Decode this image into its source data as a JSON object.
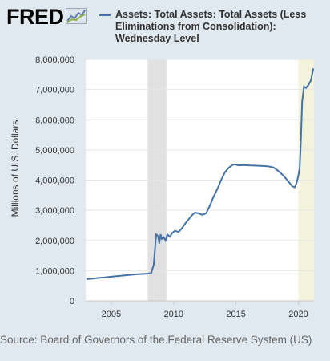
{
  "brand": {
    "name": "FRED",
    "icon": "chart-line-icon"
  },
  "source_text": "Source: Board of Governors of the Federal Reserve System (US)",
  "colors": {
    "background": "#e1e9f0",
    "plot": "#ffffff",
    "line": "#4572a7",
    "recession": "#e1e1e1",
    "highlight": "#f3f3dc"
  },
  "chart_data": {
    "type": "line",
    "title": "Assets: Total Assets: Total Assets (Less Eliminations from Consolidation): Wednesday Level",
    "ylabel": "Millions of U.S. Dollars",
    "xlabel": "",
    "xlim": [
      2002.95,
      2021.25
    ],
    "ylim": [
      0,
      8000000
    ],
    "yticks": [
      0,
      1000000,
      2000000,
      3000000,
      4000000,
      5000000,
      6000000,
      7000000,
      8000000
    ],
    "ytick_labels": [
      "0",
      "1,000,000",
      "2,000,000",
      "3,000,000",
      "4,000,000",
      "5,000,000",
      "6,000,000",
      "7,000,000",
      "8,000,000"
    ],
    "xticks": [
      2005,
      2010,
      2015,
      2020
    ],
    "xtick_labels": [
      "2005",
      "2010",
      "2015",
      "2020"
    ],
    "grid": true,
    "recession_bands": [
      [
        2007.92,
        2009.42
      ],
      [
        2020.0,
        2021.25
      ]
    ],
    "series": [
      {
        "name": "Assets: Total Assets: Total Assets (Less Eliminations from Consolidation): Wednesday Level",
        "x": [
          2003.0,
          2003.5,
          2004.0,
          2004.5,
          2005.0,
          2005.5,
          2006.0,
          2006.5,
          2007.0,
          2007.5,
          2007.9,
          2008.2,
          2008.4,
          2008.6,
          2008.75,
          2008.85,
          2008.95,
          2009.05,
          2009.2,
          2009.35,
          2009.5,
          2009.7,
          2009.9,
          2010.1,
          2010.4,
          2010.7,
          2011.0,
          2011.2,
          2011.5,
          2011.7,
          2012.0,
          2012.3,
          2012.6,
          2012.9,
          2013.2,
          2013.5,
          2013.8,
          2014.1,
          2014.4,
          2014.7,
          2014.9,
          2015.2,
          2015.6,
          2016.0,
          2016.5,
          2017.0,
          2017.5,
          2018.0,
          2018.4,
          2018.8,
          2019.2,
          2019.5,
          2019.7,
          2019.85,
          2020.0,
          2020.1,
          2020.2,
          2020.3,
          2020.45,
          2020.6,
          2020.8,
          2021.0,
          2021.2
        ],
        "values": [
          720000,
          740000,
          760000,
          780000,
          800000,
          820000,
          840000,
          860000,
          880000,
          890000,
          900000,
          920000,
          1200000,
          2200000,
          2150000,
          1900000,
          2200000,
          2050000,
          2100000,
          2000000,
          2200000,
          2120000,
          2250000,
          2320000,
          2280000,
          2420000,
          2600000,
          2700000,
          2850000,
          2920000,
          2900000,
          2850000,
          2900000,
          3150000,
          3450000,
          3700000,
          4000000,
          4250000,
          4400000,
          4500000,
          4520000,
          4490000,
          4500000,
          4490000,
          4480000,
          4470000,
          4460000,
          4420000,
          4300000,
          4150000,
          3950000,
          3800000,
          3760000,
          3900000,
          4150000,
          4400000,
          5300000,
          6600000,
          7100000,
          7050000,
          7150000,
          7300000,
          7700000
        ]
      }
    ]
  }
}
